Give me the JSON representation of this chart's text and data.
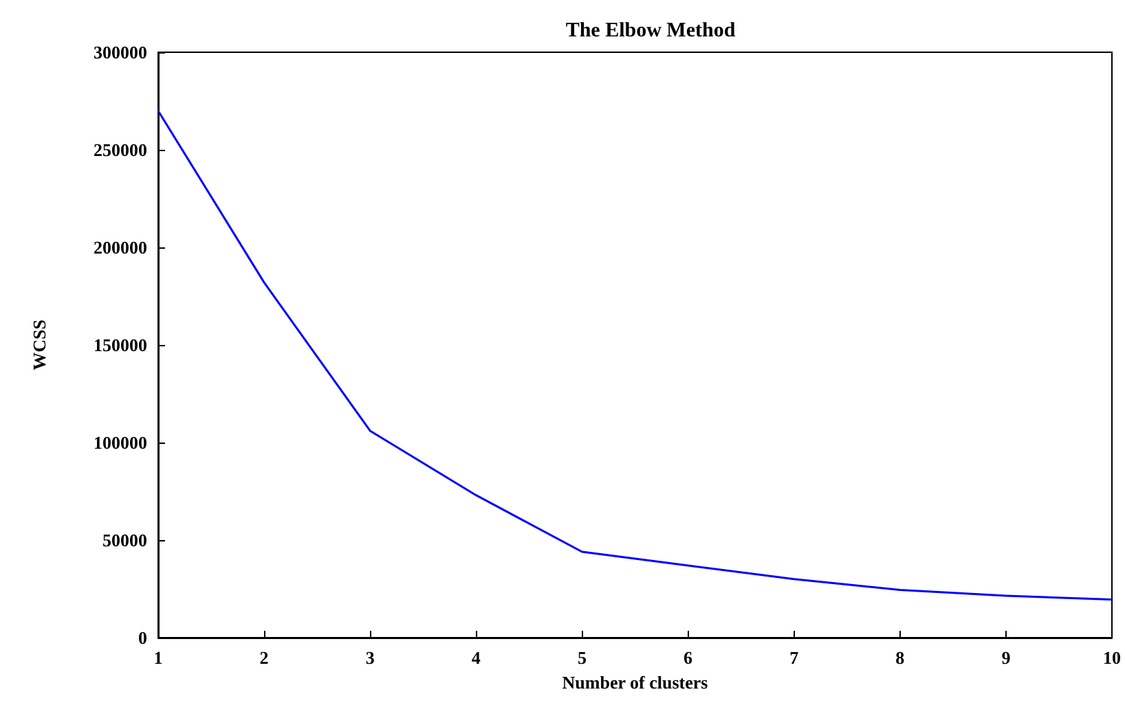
{
  "chart_data": {
    "type": "line",
    "title": "The Elbow Method",
    "xlabel": "Number of clusters",
    "ylabel": "WCSS",
    "x": [
      1,
      2,
      3,
      4,
      5,
      6,
      7,
      8,
      9,
      10
    ],
    "series": [
      {
        "color": "#0000ff",
        "values": [
          270000,
          182000,
          106000,
          73000,
          44000,
          37000,
          30000,
          24500,
          21500,
          19500
        ]
      }
    ],
    "xlim": [
      1,
      10
    ],
    "xticks": [
      1,
      2,
      3,
      4,
      5,
      6,
      7,
      8,
      9,
      10
    ],
    "ylim": [
      0,
      300000
    ],
    "yticks": [
      0,
      50000,
      100000,
      150000,
      200000,
      250000,
      300000
    ],
    "grid": false,
    "marker": "none",
    "line_style": "solid"
  }
}
